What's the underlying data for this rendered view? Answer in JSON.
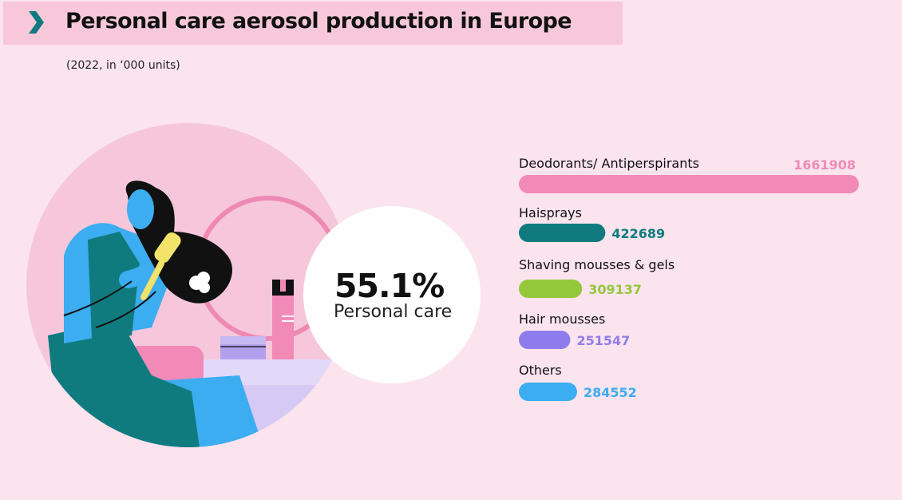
{
  "header": {
    "title": "Personal care aerosol production in Europe",
    "subtitle": "(2022, in ‘000 units)",
    "icon": "chevron-right-icon",
    "icon_color": "#0f7b7e"
  },
  "highlight": {
    "value": "55.1%",
    "label": "Personal care"
  },
  "colors": {
    "background": "#fbe4ee",
    "title_band": "#f7c8da"
  },
  "chart_data": {
    "type": "bar",
    "orientation": "horizontal",
    "title": "Personal care aerosol production in Europe",
    "subtitle": "(2022, in ‘000 units)",
    "categories": [
      "Deodorants/ Antiperspirants",
      "Haisprays",
      "Shaving mousses & gels",
      "Hair mousses",
      "Others"
    ],
    "values": [
      1661908,
      422689,
      309137,
      251547,
      284552
    ],
    "value_labels": [
      "1661908",
      "422689",
      "309137",
      "251547",
      "284552"
    ],
    "colors": [
      "#f18ab7",
      "#0f7b7e",
      "#93c83d",
      "#8f7cec",
      "#3badf0"
    ],
    "xlim": [
      0,
      1661908
    ],
    "grid": false,
    "legend": "none"
  }
}
